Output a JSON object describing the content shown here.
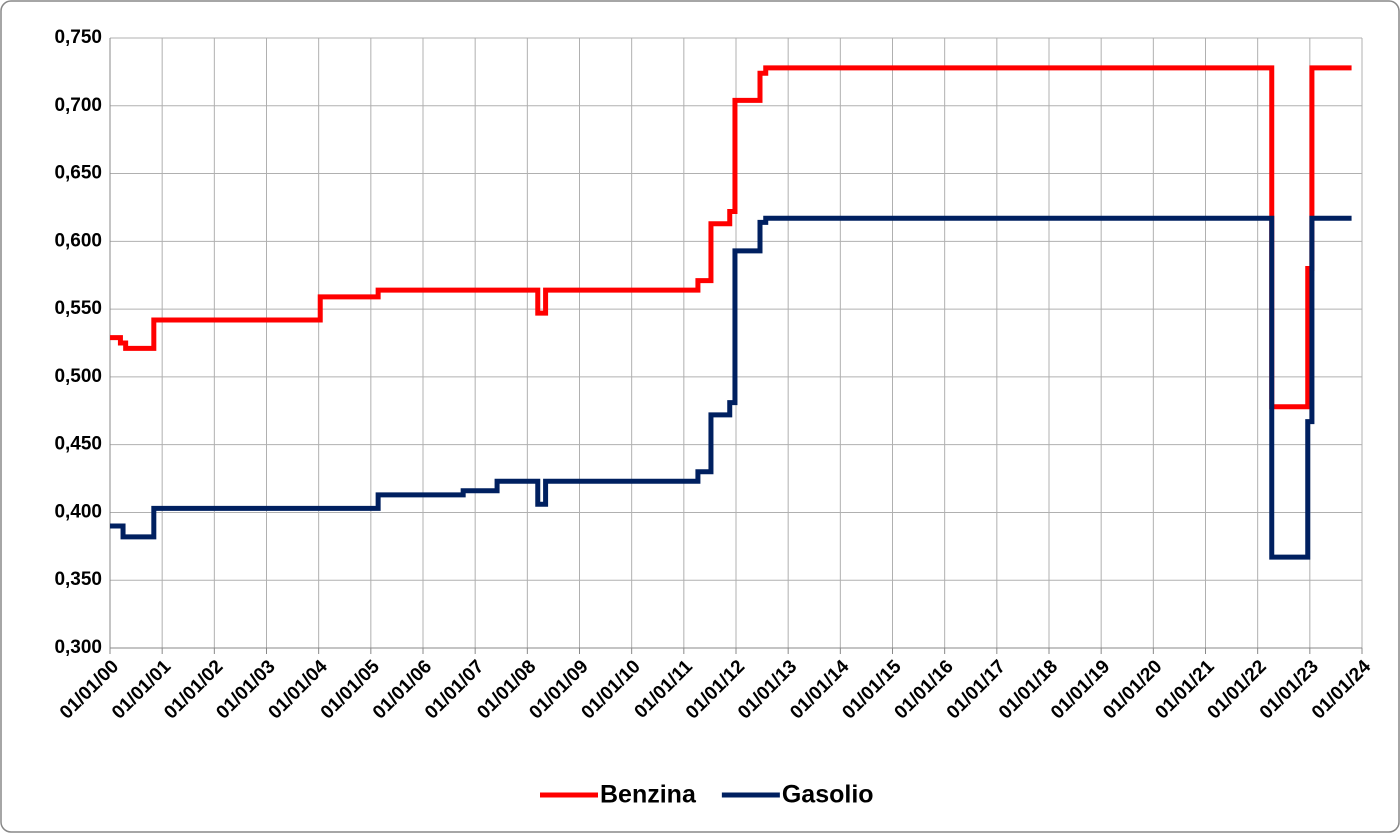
{
  "chart_data": {
    "type": "line",
    "step": "after",
    "grid": true,
    "legend": "bottom",
    "xlim": [
      2000,
      2024
    ],
    "xticks": [
      {
        "value": 2000,
        "label": "01/01/00"
      },
      {
        "value": 2001,
        "label": "01/01/01"
      },
      {
        "value": 2002,
        "label": "01/01/02"
      },
      {
        "value": 2003,
        "label": "01/01/03"
      },
      {
        "value": 2004,
        "label": "01/01/04"
      },
      {
        "value": 2005,
        "label": "01/01/05"
      },
      {
        "value": 2006,
        "label": "01/01/06"
      },
      {
        "value": 2007,
        "label": "01/01/07"
      },
      {
        "value": 2008,
        "label": "01/01/08"
      },
      {
        "value": 2009,
        "label": "01/01/09"
      },
      {
        "value": 2010,
        "label": "01/01/10"
      },
      {
        "value": 2011,
        "label": "01/01/11"
      },
      {
        "value": 2012,
        "label": "01/01/12"
      },
      {
        "value": 2013,
        "label": "01/01/13"
      },
      {
        "value": 2014,
        "label": "01/01/14"
      },
      {
        "value": 2015,
        "label": "01/01/15"
      },
      {
        "value": 2016,
        "label": "01/01/16"
      },
      {
        "value": 2017,
        "label": "01/01/17"
      },
      {
        "value": 2018,
        "label": "01/01/18"
      },
      {
        "value": 2019,
        "label": "01/01/19"
      },
      {
        "value": 2020,
        "label": "01/01/20"
      },
      {
        "value": 2021,
        "label": "01/01/21"
      },
      {
        "value": 2022,
        "label": "01/01/22"
      },
      {
        "value": 2023,
        "label": "01/01/23"
      },
      {
        "value": 2024,
        "label": "01/01/24"
      }
    ],
    "ylim": [
      0.3,
      0.75
    ],
    "yticks": [
      {
        "value": 0.3,
        "label": "0,300"
      },
      {
        "value": 0.35,
        "label": "0,350"
      },
      {
        "value": 0.4,
        "label": "0,400"
      },
      {
        "value": 0.45,
        "label": "0,450"
      },
      {
        "value": 0.5,
        "label": "0,500"
      },
      {
        "value": 0.55,
        "label": "0,550"
      },
      {
        "value": 0.6,
        "label": "0,600"
      },
      {
        "value": 0.65,
        "label": "0,650"
      },
      {
        "value": 0.7,
        "label": "0,700"
      },
      {
        "value": 0.75,
        "label": "0,750"
      }
    ],
    "series": [
      {
        "name": "Benzina",
        "color": "#ff0000",
        "x": [
          2000.0,
          2000.2,
          2000.3,
          2000.84,
          2004.03,
          2005.14,
          2008.2,
          2008.35,
          2011.27,
          2011.52,
          2011.88,
          2011.98,
          2012.46,
          2012.57,
          2022.27,
          2022.96,
          2023.04,
          2023.8
        ],
        "values": [
          0.529,
          0.525,
          0.521,
          0.542,
          0.559,
          0.564,
          0.547,
          0.564,
          0.571,
          0.613,
          0.622,
          0.704,
          0.724,
          0.728,
          0.478,
          0.58,
          0.728,
          0.728
        ]
      },
      {
        "name": "Gasolio",
        "color": "#002060",
        "x": [
          2000.0,
          2000.25,
          2000.84,
          2005.14,
          2006.77,
          2007.42,
          2008.2,
          2008.35,
          2011.27,
          2011.52,
          2011.88,
          2011.98,
          2012.46,
          2012.57,
          2022.27,
          2022.96,
          2023.04,
          2023.8
        ],
        "values": [
          0.39,
          0.382,
          0.403,
          0.413,
          0.416,
          0.423,
          0.406,
          0.423,
          0.43,
          0.472,
          0.481,
          0.593,
          0.614,
          0.617,
          0.367,
          0.467,
          0.617,
          0.617
        ]
      }
    ]
  }
}
